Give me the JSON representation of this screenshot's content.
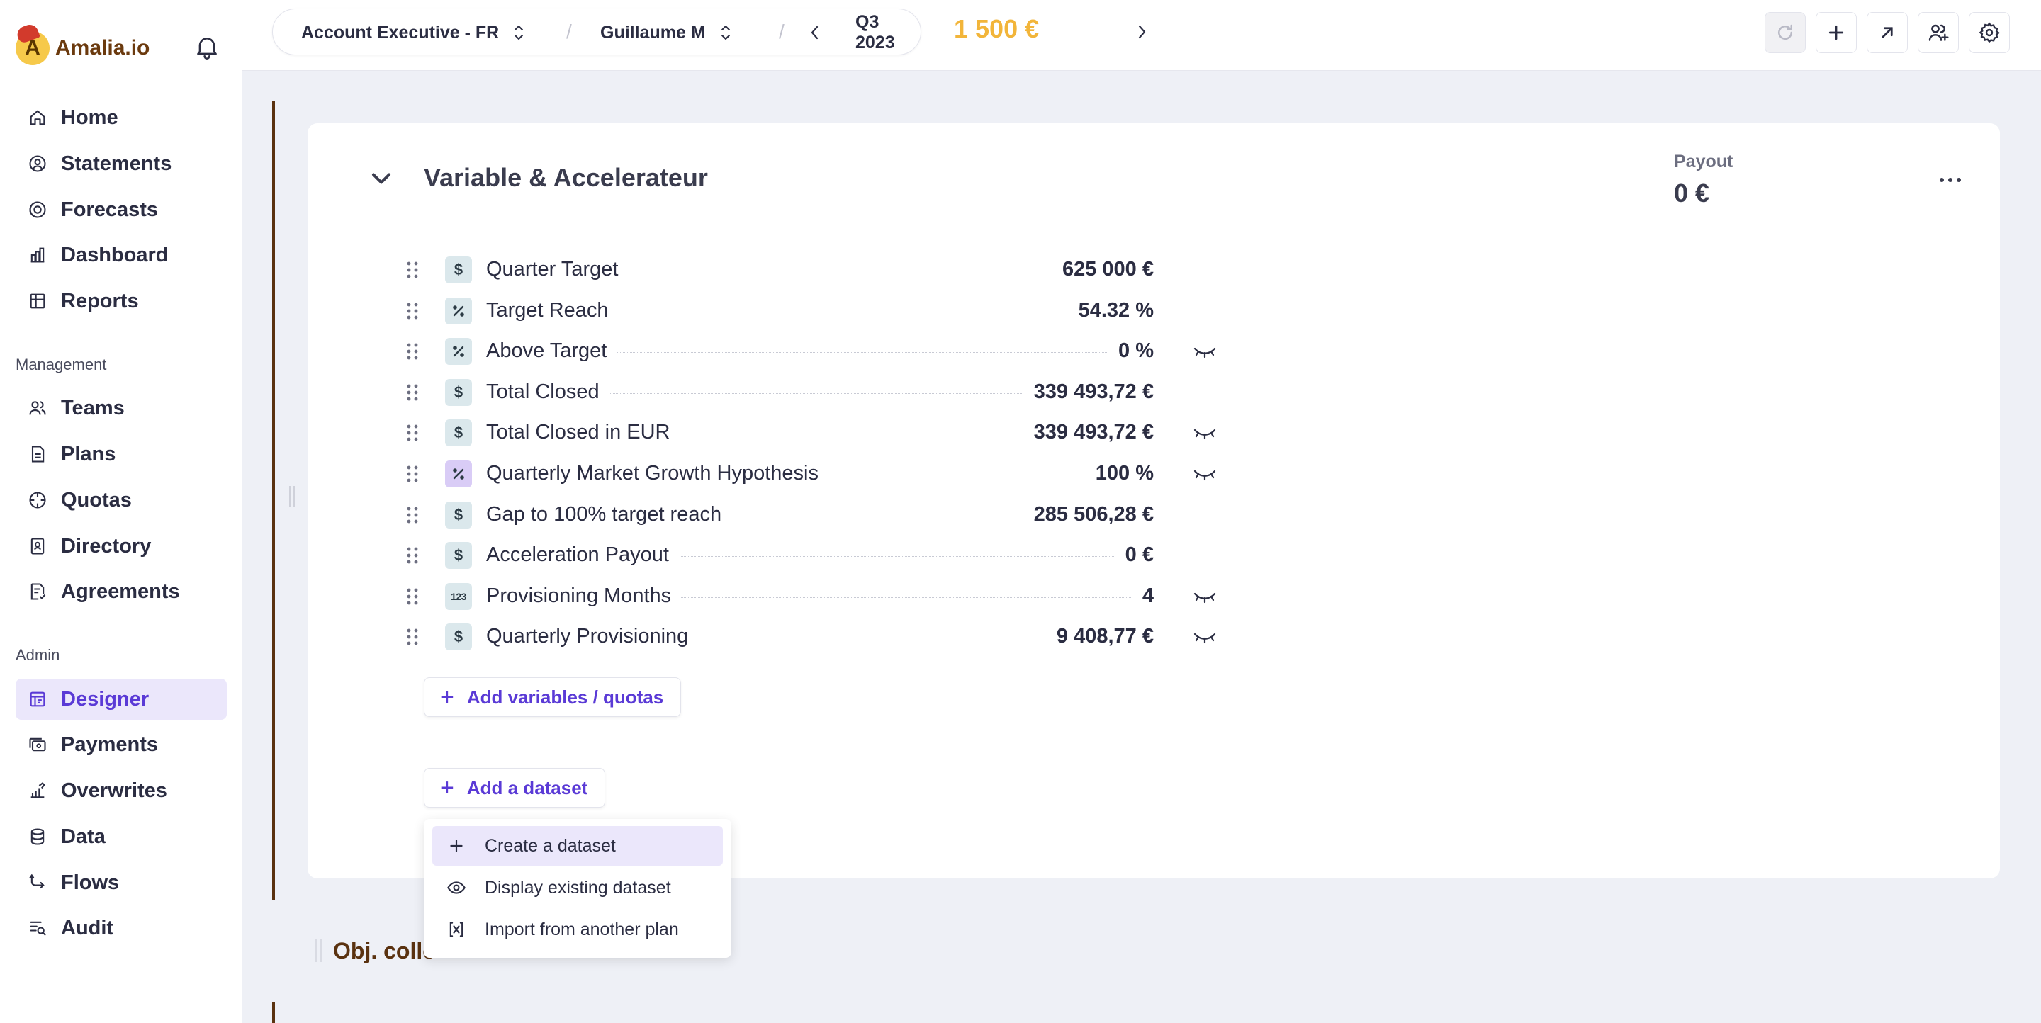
{
  "brand": {
    "name": "Amalia.io",
    "logo_letter": "A"
  },
  "sidebar": {
    "items": [
      {
        "label": "Home",
        "icon": "home-icon"
      },
      {
        "label": "Statements",
        "icon": "user-circle-icon"
      },
      {
        "label": "Forecasts",
        "icon": "forecast-icon"
      },
      {
        "label": "Dashboard",
        "icon": "bar-chart-icon"
      },
      {
        "label": "Reports",
        "icon": "table-icon"
      }
    ],
    "management_label": "Management",
    "management_items": [
      {
        "label": "Teams",
        "icon": "users-icon"
      },
      {
        "label": "Plans",
        "icon": "document-icon"
      },
      {
        "label": "Quotas",
        "icon": "target-icon"
      },
      {
        "label": "Directory",
        "icon": "contact-book-icon"
      },
      {
        "label": "Agreements",
        "icon": "agreement-icon"
      }
    ],
    "admin_label": "Admin",
    "admin_items": [
      {
        "label": "Designer",
        "icon": "designer-icon",
        "active": true
      },
      {
        "label": "Payments",
        "icon": "payments-icon"
      },
      {
        "label": "Overwrites",
        "icon": "overwrite-icon"
      },
      {
        "label": "Data",
        "icon": "database-icon"
      },
      {
        "label": "Flows",
        "icon": "flows-icon"
      },
      {
        "label": "Audit",
        "icon": "audit-icon"
      }
    ]
  },
  "topbar": {
    "plan": "Account Executive - FR",
    "user": "Guillaume M",
    "period": "Q3 2023",
    "total": "1 500 €"
  },
  "rule": {
    "title": "Variable & Accelerateur",
    "payout_label": "Payout",
    "payout_value": "0 €",
    "rows": [
      {
        "name": "Quarter Target",
        "value": "625 000 €",
        "type": "currency",
        "hidden": false
      },
      {
        "name": "Target Reach",
        "value": "54.32 %",
        "type": "percent",
        "hidden": false
      },
      {
        "name": "Above Target",
        "value": "0 %",
        "type": "percent",
        "hidden": true
      },
      {
        "name": "Total Closed",
        "value": "339 493,72 €",
        "type": "currency",
        "hidden": false
      },
      {
        "name": "Total Closed in EUR",
        "value": "339 493,72 €",
        "type": "currency",
        "hidden": true
      },
      {
        "name": "Quarterly Market Growth Hypothesis",
        "value": "100 %",
        "type": "percent-quota",
        "hidden": true
      },
      {
        "name": "Gap to 100% target reach",
        "value": "285 506,28 €",
        "type": "currency",
        "hidden": false
      },
      {
        "name": "Acceleration Payout",
        "value": "0 €",
        "type": "currency",
        "hidden": false
      },
      {
        "name": "Provisioning Months",
        "value": "4",
        "type": "number",
        "hidden": true
      },
      {
        "name": "Quarterly Provisioning",
        "value": "9 408,77 €",
        "type": "currency",
        "hidden": true
      }
    ],
    "add_variables_label": "Add variables / quotas",
    "add_dataset_label": "Add a dataset"
  },
  "dataset_menu": {
    "items": [
      {
        "label": "Create a dataset",
        "icon": "plus-icon"
      },
      {
        "label": "Display existing dataset",
        "icon": "eye-icon"
      },
      {
        "label": "Import from another plan",
        "icon": "import-icon"
      }
    ]
  },
  "next_section_title": "Obj. collc",
  "colors": {
    "accent": "#5a3ad6",
    "brand_brown": "#5a3210",
    "total": "#f2b53a"
  },
  "type_glyphs": {
    "currency": "$",
    "percent": "%",
    "number": "123"
  }
}
